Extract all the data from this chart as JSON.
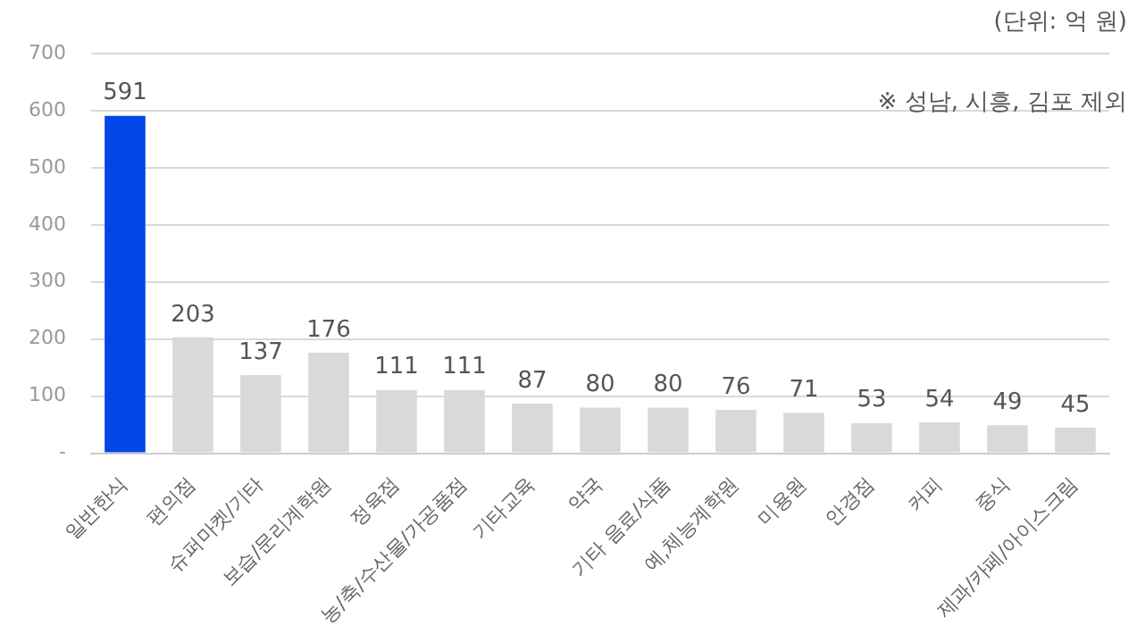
{
  "chart_data": {
    "type": "bar",
    "categories": [
      "일반한식",
      "편의점",
      "슈퍼마켓/기타",
      "보습/문리계학원",
      "정육점",
      "농/축/수산물/가공품점",
      "기타교육",
      "약국",
      "기타 음료/식품",
      "예,체능계학원",
      "미용원",
      "안경점",
      "커피",
      "중식",
      "제과/카페/아이스크림"
    ],
    "values": [
      591,
      203,
      137,
      176,
      111,
      111,
      87,
      80,
      80,
      76,
      71,
      53,
      54,
      49,
      45
    ],
    "colors": [
      "#0046e8",
      "#d9d9d9",
      "#d9d9d9",
      "#d9d9d9",
      "#d9d9d9",
      "#d9d9d9",
      "#d9d9d9",
      "#d9d9d9",
      "#d9d9d9",
      "#d9d9d9",
      "#d9d9d9",
      "#d9d9d9",
      "#d9d9d9",
      "#d9d9d9",
      "#d9d9d9"
    ],
    "ylim": [
      0,
      700
    ],
    "yticks": [
      {
        "value": 0,
        "label": "-"
      },
      100,
      200,
      300,
      400,
      500,
      600,
      700
    ],
    "grid": "y",
    "legend": false,
    "data_labels": true,
    "annotations": [
      "(단위: 억 원)",
      "※ 성남, 시흥, 김포 제외"
    ]
  }
}
